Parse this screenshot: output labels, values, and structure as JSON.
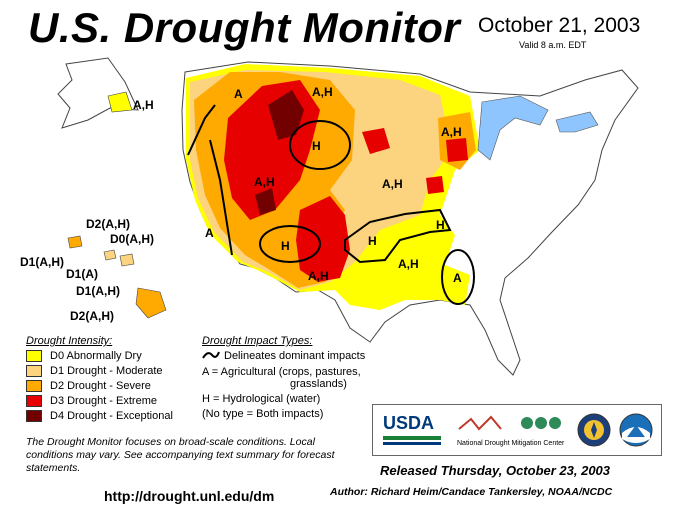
{
  "title": "U.S. Drought Monitor",
  "date": "October 21, 2003",
  "valid": "Valid 8 a.m. EDT",
  "map_labels": {
    "alaska": "A,H",
    "hi1": "D2(A,H)",
    "hi2": "D0(A,H)",
    "hi3": "D1(A,H)",
    "hi4": "D1(A)",
    "hi5": "D1(A,H)",
    "hi6": "D2(A,H)",
    "w_a1": "A",
    "w_a2": "A",
    "nw_ah": "A,H",
    "h_north": "H",
    "ah_mid": "A,H",
    "ah_plains": "A,H",
    "ah_gl": "A,H",
    "h_sw": "H",
    "h_tx": "H",
    "ah_nm": "A,H",
    "ah_south": "A,H",
    "h_ms": "H",
    "a_se": "A"
  },
  "legend": {
    "intensity_heading": "Drought Intensity:",
    "items": [
      {
        "label": "D0 Abnormally Dry",
        "color": "#ffff00"
      },
      {
        "label": "D1 Drought - Moderate",
        "color": "#fcd37f"
      },
      {
        "label": "D2 Drought - Severe",
        "color": "#ffaa00"
      },
      {
        "label": "D3 Drought - Extreme",
        "color": "#e60000"
      },
      {
        "label": "D4 Drought - Exceptional",
        "color": "#730000"
      }
    ],
    "impact_heading": "Drought Impact Types:",
    "impact_line": "Delineates dominant impacts",
    "impact_a": "A = Agricultural (crops, pastures,",
    "impact_a2": "grasslands)",
    "impact_h": "H = Hydrological (water)",
    "impact_none": "(No type = Both impacts)"
  },
  "note": "The Drought Monitor focuses on broad-scale conditions. Local conditions may vary.  See accompanying text summary for forecast statements.",
  "url": "http://drought.unl.edu/dm",
  "released": "Released Thursday, October 23, 2003",
  "author": "Author: Richard Heim/Candace Tankersley, NOAA/NCDC",
  "logos": {
    "usda": "USDA",
    "ndmc": "National Drought Mitigation Center"
  }
}
